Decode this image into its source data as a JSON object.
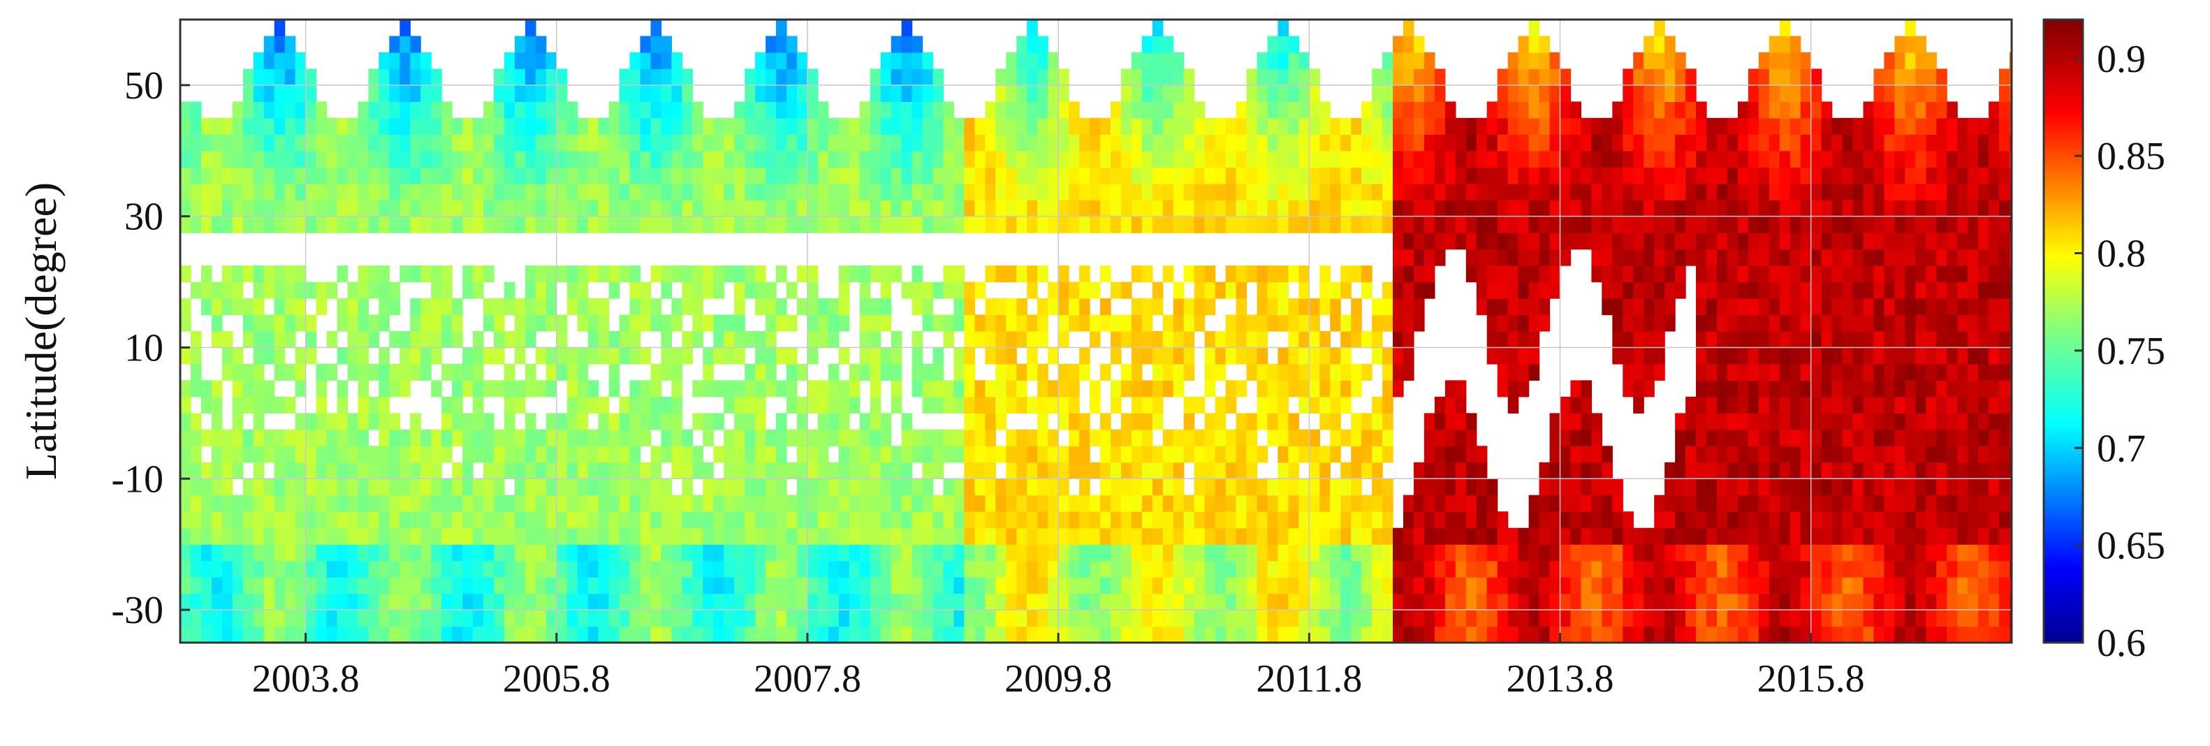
{
  "chart_data": {
    "type": "heatmap",
    "title": "",
    "xlabel": "",
    "ylabel": "Latitude(degree)",
    "x_range": [
      "2002.8",
      "2017.4"
    ],
    "ylim": [
      -35,
      60
    ],
    "x_tick_labels": [
      "2003.8",
      "2005.8",
      "2007.8",
      "2009.8",
      "2011.8",
      "2013.8",
      "2015.8"
    ],
    "y_tick_labels": [
      "50",
      "30",
      "10",
      "-10",
      "-30"
    ],
    "colorbar": {
      "colormap": "jet",
      "range": [
        0.6,
        0.92
      ],
      "tick_labels": [
        "0.9",
        "0.85",
        "0.8",
        "0.75",
        "0.7",
        "0.65",
        "0.6"
      ]
    },
    "grid": true,
    "missing_value_color": "#ffffff",
    "summary_values": {
      "period_2003_to_2009": 0.77,
      "period_2009_to_2012": 0.81,
      "period_after_2012_4": 0.9
    }
  }
}
